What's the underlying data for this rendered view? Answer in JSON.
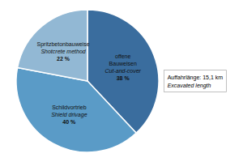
{
  "chart_data": {
    "type": "pie",
    "categories": [
      "offene\nBauweisen\nCut-and-cover",
      "Schildvortrieb\nShield drivage",
      "Spritzbetonbauweise\nShotcrete method"
    ],
    "values": [
      38,
      40,
      22
    ],
    "value_labels": [
      "38 %",
      "40 %",
      "22 %"
    ],
    "colors": [
      "#3a6d9e",
      "#5a9bc7",
      "#92b8d4"
    ],
    "annotations": [
      "Auffahrlänge: 15,1 km",
      "Excavated length"
    ]
  }
}
